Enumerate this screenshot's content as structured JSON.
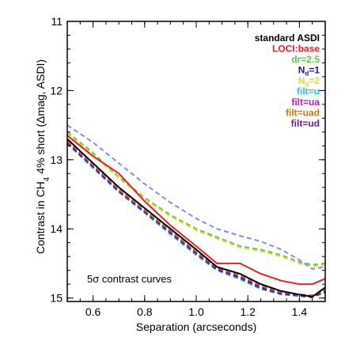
{
  "chart_data": {
    "type": "line",
    "xlabel": "Separation (arcseconds)",
    "ylabel": {
      "pre": "Contrast in CH",
      "sub": "4",
      "mid": " 4% short (",
      "delta": "Δ",
      "post": "mag, ASDI)"
    },
    "annotation": "5σ contrast curves",
    "xlim": [
      0.5,
      1.5
    ],
    "ylim": [
      15.05,
      11.0
    ],
    "y_inverted": true,
    "x_ticks": [
      0.6,
      0.8,
      1.0,
      1.2,
      1.4
    ],
    "x_tick_labels": [
      "0.6",
      "0.8",
      "1.0",
      "1.2",
      "1.4"
    ],
    "y_ticks": [
      11,
      12,
      13,
      14,
      15
    ],
    "y_tick_labels": [
      "11",
      "12",
      "13",
      "14",
      "15"
    ],
    "legend_placement": "top-right",
    "x": [
      0.5,
      0.6,
      0.7,
      0.8,
      0.9,
      1.0,
      1.08,
      1.17,
      1.25,
      1.33,
      1.4,
      1.45,
      1.5
    ],
    "series": [
      {
        "name": "standard ASDI",
        "legend_parts": [
          "standard ASDI"
        ],
        "color": "#000000",
        "style": "solid",
        "values": [
          12.7,
          13.05,
          13.4,
          13.7,
          14.0,
          14.3,
          14.55,
          14.65,
          14.8,
          14.9,
          14.95,
          14.98,
          14.85
        ]
      },
      {
        "name": "LOCI:base",
        "legend_parts": [
          "LOCI:base"
        ],
        "color": "#e8202a",
        "style": "solid",
        "values": [
          12.65,
          12.95,
          13.2,
          13.6,
          13.95,
          14.25,
          14.5,
          14.5,
          14.65,
          14.75,
          14.8,
          14.8,
          14.72
        ]
      },
      {
        "name": "dr=2.5",
        "legend_parts": [
          "dr=2.5"
        ],
        "color": "#5cc84a",
        "style": "dashed",
        "values": [
          12.6,
          12.9,
          13.25,
          13.55,
          13.8,
          14.0,
          14.12,
          14.25,
          14.3,
          14.38,
          14.48,
          14.52,
          14.5
        ]
      },
      {
        "name": "N_d=1",
        "legend_parts": [
          "N",
          "d",
          "=1"
        ],
        "color": "#1a1a9c",
        "style": "dashed",
        "values": [
          12.75,
          13.1,
          13.45,
          13.75,
          14.05,
          14.35,
          14.58,
          14.7,
          14.85,
          14.93,
          14.96,
          14.98,
          14.92
        ]
      },
      {
        "name": "N_d=2",
        "legend_parts": [
          "N",
          "d",
          "=2"
        ],
        "color": "#e6d833",
        "style": "dashed",
        "values": [
          12.62,
          12.93,
          13.27,
          13.57,
          13.82,
          14.02,
          14.14,
          14.27,
          14.32,
          14.4,
          14.5,
          14.54,
          14.52
        ]
      },
      {
        "name": "filt=u",
        "legend_parts": [
          "filt=u"
        ],
        "color": "#2bc6d6",
        "style": "dashed",
        "values": [
          12.77,
          13.12,
          13.47,
          13.77,
          14.08,
          14.38,
          14.6,
          14.73,
          14.87,
          14.95,
          14.97,
          14.98,
          14.88
        ]
      },
      {
        "name": "filt=ua",
        "legend_parts": [
          "filt=ua"
        ],
        "color": "#b51fa8",
        "style": "dashed",
        "values": [
          12.74,
          13.09,
          13.44,
          13.74,
          14.04,
          14.34,
          14.57,
          14.68,
          14.83,
          14.92,
          14.95,
          14.97,
          14.9
        ]
      },
      {
        "name": "filt=uad",
        "legend_parts": [
          "filt=uad"
        ],
        "color": "#c47a18",
        "style": "dashed",
        "values": [
          12.73,
          13.08,
          13.43,
          13.73,
          14.03,
          14.33,
          14.56,
          14.67,
          14.82,
          14.91,
          14.95,
          14.96,
          14.89
        ]
      },
      {
        "name": "filt=ud",
        "legend_parts": [
          "filt=ud"
        ],
        "color": "#5a1fb0",
        "style": "dashed",
        "values": [
          12.76,
          13.11,
          13.46,
          13.76,
          14.06,
          14.36,
          14.59,
          14.71,
          14.86,
          14.94,
          14.97,
          14.99,
          14.91
        ]
      },
      {
        "name": "",
        "legend_parts": [],
        "color": "#8a8af0",
        "style": "dashed",
        "values": [
          12.5,
          12.75,
          13.05,
          13.35,
          13.62,
          13.85,
          14.0,
          14.1,
          14.18,
          14.3,
          14.45,
          14.58,
          14.55
        ]
      }
    ]
  }
}
